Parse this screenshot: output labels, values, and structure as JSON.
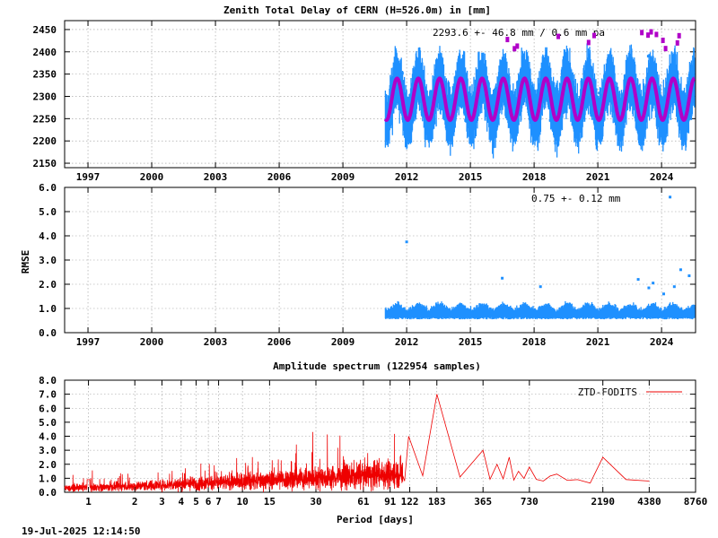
{
  "footer_timestamp": "19-Jul-2025 12:14:50",
  "colors": {
    "ztd_points": "#1e90ff",
    "ztd_model": "#b000c8",
    "spectrum": "#ee0000",
    "grid": "#999999"
  },
  "chart_data": [
    {
      "id": "ztd",
      "type": "scatter",
      "title": "Zenith Total Delay of CERN (H=526.0m) in [mm]",
      "xlabel": "",
      "ylabel": "",
      "xlim": [
        1995.9,
        2025.6
      ],
      "ylim": [
        2140,
        2470
      ],
      "x_ticks": [
        "1997",
        "2000",
        "2003",
        "2006",
        "2009",
        "2012",
        "2015",
        "2018",
        "2021",
        "2024"
      ],
      "y_ticks": [
        "2150",
        "2200",
        "2250",
        "2300",
        "2350",
        "2400",
        "2450"
      ],
      "annotation": "2293.6 +-  46.8 mm /  0.6 mm pa",
      "series": [
        {
          "kind": "observations",
          "x_start": 2011.0,
          "x_end": 2025.55,
          "mean": 2293.6,
          "annual_amplitude": 46.8,
          "trend_mm_per_year": 0.6,
          "band_low": 2180,
          "band_high": 2440,
          "extremes_low": 2145,
          "extremes_high": 2455
        },
        {
          "kind": "seasonal_model",
          "x_start": 2011.0,
          "x_end": 2025.55,
          "mean": 2293.6,
          "amplitude": 46.8
        }
      ]
    },
    {
      "id": "rmse",
      "type": "scatter",
      "title": "",
      "xlabel": "",
      "ylabel": "RMSE",
      "xlim": [
        1995.9,
        2025.6
      ],
      "ylim": [
        0.0,
        6.0
      ],
      "x_ticks": [
        "1997",
        "2000",
        "2003",
        "2006",
        "2009",
        "2012",
        "2015",
        "2018",
        "2021",
        "2024"
      ],
      "y_ticks": [
        "0.0",
        "1.0",
        "2.0",
        "3.0",
        "4.0",
        "5.0",
        "6.0"
      ],
      "annotation": "0.75 +-  0.12 mm",
      "series": [
        {
          "kind": "observations",
          "x_start": 2011.0,
          "x_end": 2025.55,
          "band_low": 0.55,
          "band_high": 1.3,
          "outliers": [
            [
              2012.0,
              3.75
            ],
            [
              2016.5,
              2.25
            ],
            [
              2018.3,
              1.9
            ],
            [
              2022.9,
              2.2
            ],
            [
              2023.4,
              1.85
            ],
            [
              2023.6,
              2.05
            ],
            [
              2024.1,
              1.6
            ],
            [
              2024.4,
              5.6
            ],
            [
              2024.6,
              1.9
            ],
            [
              2024.9,
              2.6
            ],
            [
              2025.3,
              2.35
            ]
          ]
        }
      ]
    },
    {
      "id": "spectrum",
      "type": "line",
      "title": "Amplitude spectrum (122954 samples)",
      "xlabel": "Period [days]",
      "ylabel": "",
      "xscale": "log",
      "xlim": [
        0.7,
        8760
      ],
      "ylim": [
        0.0,
        8.0
      ],
      "x_ticks": [
        "1",
        "2",
        "3",
        "4",
        "5",
        "6",
        "7",
        "10",
        "15",
        "30",
        "61",
        "91",
        "122",
        "183",
        "365",
        "730",
        "2190",
        "4380",
        "8760"
      ],
      "y_ticks": [
        "0.0",
        "1.0",
        "2.0",
        "3.0",
        "4.0",
        "5.0",
        "6.0",
        "7.0",
        "8.0"
      ],
      "legend": "top-right",
      "series": [
        {
          "name": "ZTD-FODITS",
          "peaks": [
            [
              120,
              4.0
            ],
            [
              183,
              7.0
            ],
            [
              365,
              3.0
            ],
            [
              450,
              2.0
            ],
            [
              540,
              2.5
            ],
            [
              620,
              1.5
            ],
            [
              730,
              1.8
            ],
            [
              900,
              0.8
            ],
            [
              1100,
              1.3
            ],
            [
              1500,
              0.9
            ],
            [
              2190,
              2.5
            ],
            [
              4380,
              0.8
            ]
          ]
        }
      ]
    }
  ]
}
